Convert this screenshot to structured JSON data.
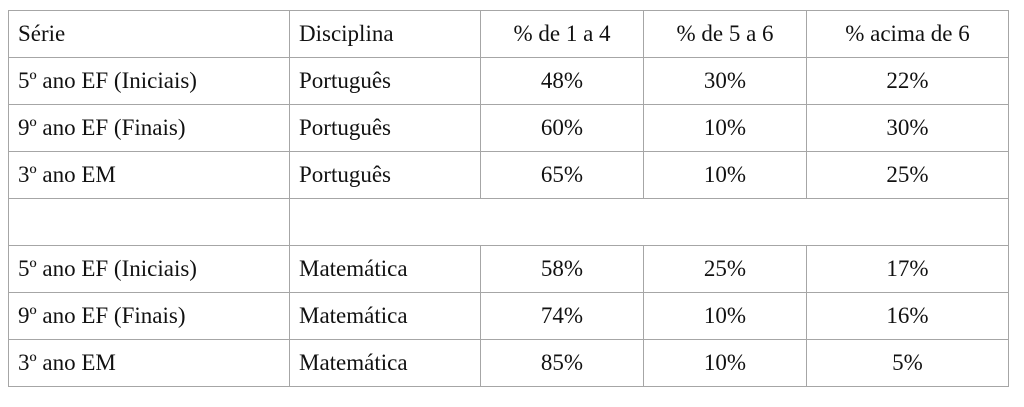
{
  "table": {
    "header": [
      "Série",
      "Disciplina",
      "% de 1 a 4",
      "% de 5 a 6",
      "% acima de 6"
    ],
    "sections": [
      {
        "rows": [
          [
            "5º ano EF (Iniciais)",
            "Português",
            "48%",
            "30%",
            "22%"
          ],
          [
            "9º ano EF (Finais)",
            "Português",
            "60%",
            "10%",
            "30%"
          ],
          [
            "3º ano EM",
            "Português",
            "65%",
            "10%",
            "25%"
          ]
        ]
      },
      {
        "rows": [
          [
            "5º ano EF (Iniciais)",
            "Matemática",
            "58%",
            "25%",
            "17%"
          ],
          [
            "9º ano EF (Finais)",
            "Matemática",
            "74%",
            "10%",
            "16%"
          ],
          [
            "3º ano EM",
            "Matemática",
            "85%",
            "10%",
            "5%"
          ]
        ]
      }
    ]
  }
}
